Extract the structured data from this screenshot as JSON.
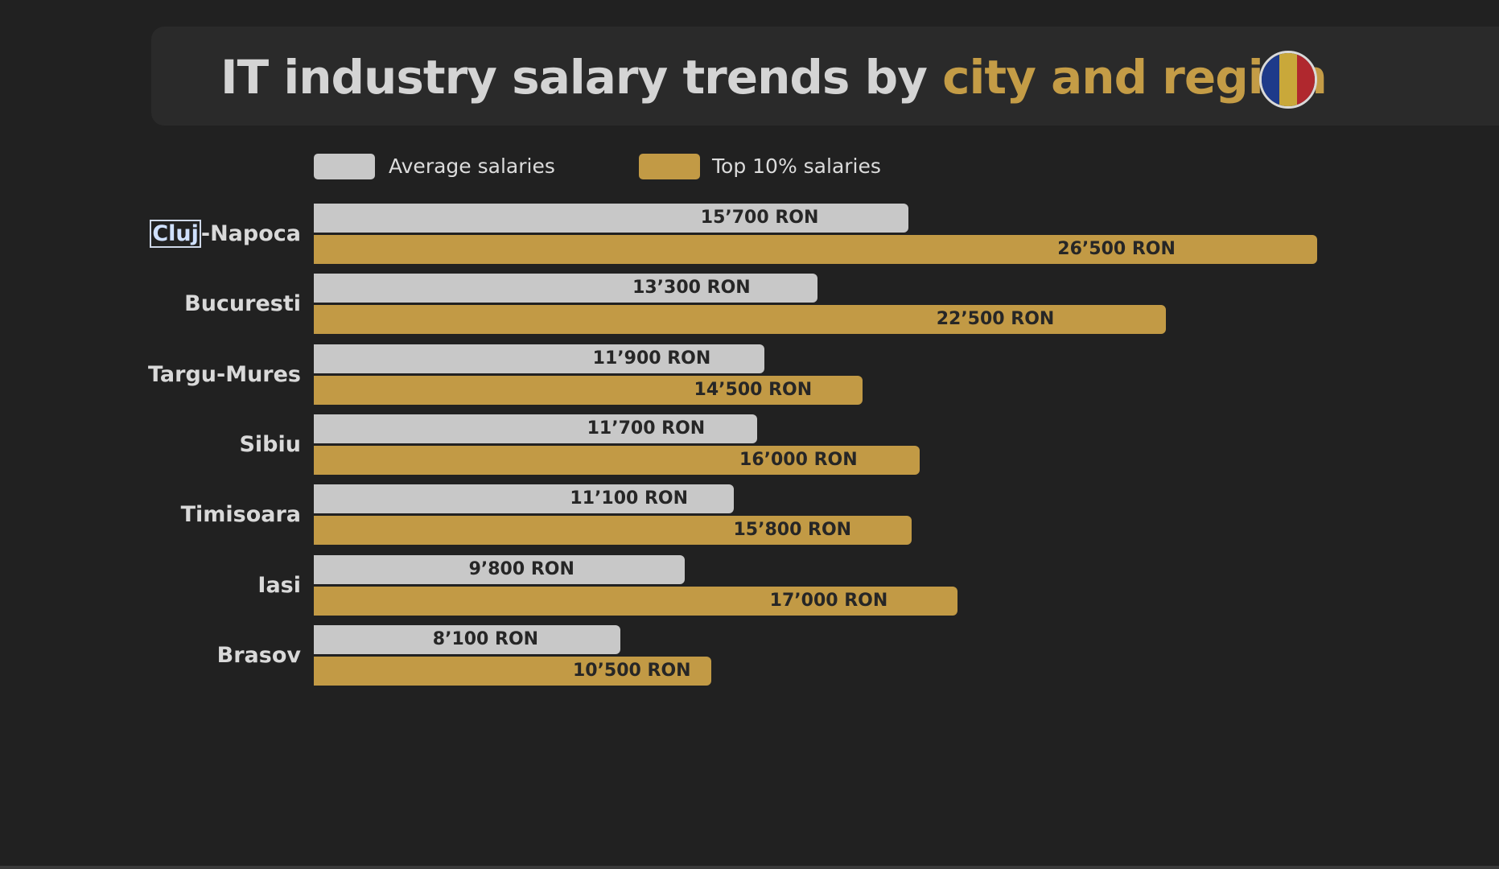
{
  "title": {
    "part1": "IT industry salary trends by ",
    "part2": "city and region"
  },
  "flag_icon": "romania-flag-icon",
  "colors": {
    "average": "#c8c8c8",
    "top10": "#c29a45",
    "flag": [
      "#1e3a8a",
      "#c9a83a",
      "#b0282e"
    ]
  },
  "chart_data": {
    "type": "bar",
    "orientation": "horizontal",
    "categories": [
      "Cluj-Napoca",
      "Bucuresti",
      "Targu-Mures",
      "Sibiu",
      "Timisoara",
      "Iasi",
      "Brasov"
    ],
    "series": [
      {
        "name": "Average salaries",
        "values": [
          15700,
          13300,
          11900,
          11700,
          11100,
          9800,
          8100
        ],
        "labels": [
          "15’700 RON",
          "13’300 RON",
          "11’900 RON",
          "11’700 RON",
          "11’100 RON",
          "9’800 RON",
          "8’100 RON"
        ]
      },
      {
        "name": "Top 10% salaries",
        "values": [
          26500,
          22500,
          14500,
          16000,
          15800,
          17000,
          10500
        ],
        "labels": [
          "26’500 RON",
          "22’500 RON",
          "14’500 RON",
          "16’000 RON",
          "15’800 RON",
          "17’000 RON",
          "10’500 RON"
        ]
      }
    ],
    "legend_position": "top",
    "grid": false
  }
}
